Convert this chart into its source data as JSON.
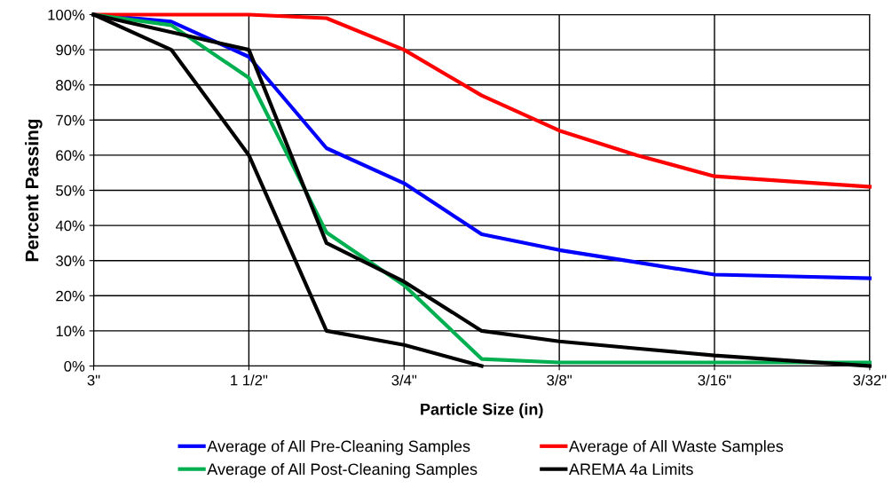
{
  "chart_data": {
    "type": "line",
    "xlabel": "Particle Size (in)",
    "ylabel": "Percent Passing",
    "grid": true,
    "legend": "bottom",
    "marker": "none",
    "line_style": "solid",
    "categories": [
      "3\"",
      null,
      "1 1/2\"",
      null,
      "3/4\"",
      null,
      "3/8\"",
      null,
      "3/16\"",
      null,
      "3/32\""
    ],
    "ylim": [
      0,
      100
    ],
    "yticks": [
      {
        "value": 0,
        "label": "0%"
      },
      {
        "value": 10,
        "label": "10%"
      },
      {
        "value": 20,
        "label": "20%"
      },
      {
        "value": 30,
        "label": "30%"
      },
      {
        "value": 40,
        "label": "40%"
      },
      {
        "value": 50,
        "label": "50%"
      },
      {
        "value": 60,
        "label": "60%"
      },
      {
        "value": 70,
        "label": "70%"
      },
      {
        "value": 80,
        "label": "80%"
      },
      {
        "value": 90,
        "label": "90%"
      },
      {
        "value": 100,
        "label": "100%"
      }
    ],
    "series": [
      {
        "name": "Average of All Pre-Cleaning Samples",
        "color": "#0000ff",
        "values": [
          100,
          98,
          88,
          62,
          52,
          37.5,
          33,
          29.5,
          26,
          25.5,
          25
        ]
      },
      {
        "name": "Average of All Waste Samples",
        "color": "#ff0000",
        "values": [
          100,
          100,
          100,
          99,
          90,
          77,
          67,
          60,
          54,
          52.5,
          51
        ]
      },
      {
        "name": "Average of All Post-Cleaning Samples",
        "color": "#00b050",
        "values": [
          100,
          97,
          82,
          38,
          23,
          2,
          1,
          1,
          1,
          1,
          1
        ]
      },
      {
        "name": "AREMA 4a Limits",
        "color": "#000000",
        "values": [
          100,
          95,
          90,
          35,
          24,
          10,
          7,
          5,
          3,
          1.5,
          0
        ]
      },
      {
        "color": "#000000",
        "values": [
          100,
          90,
          60,
          10,
          6,
          0,
          null,
          null,
          null,
          null,
          null
        ]
      }
    ]
  }
}
